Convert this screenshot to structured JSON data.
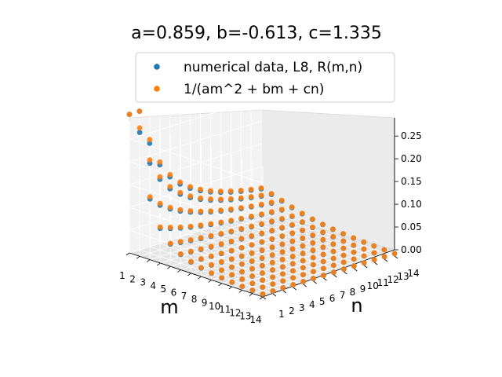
{
  "chart_data": {
    "type": "scatter",
    "title": "a=0.859, b=-0.613, c=1.335",
    "xlabel": "m",
    "ylabel": "n",
    "zlabel": "",
    "params": {
      "a": 0.859,
      "b": -0.613,
      "c": 1.335
    },
    "x_ticks": [
      "1",
      "2",
      "3",
      "4",
      "5",
      "6",
      "7",
      "8",
      "9",
      "10",
      "11",
      "12",
      "13",
      "14"
    ],
    "y_ticks": [
      "1",
      "2",
      "3",
      "4",
      "5",
      "6",
      "7",
      "8",
      "9",
      "10",
      "11",
      "12",
      "13",
      "14"
    ],
    "z_ticks": [
      "0.00",
      "0.05",
      "0.10",
      "0.15",
      "0.20",
      "0.25"
    ],
    "xlim": [
      1,
      14
    ],
    "ylim": [
      1,
      14
    ],
    "zlim": [
      0,
      0.29
    ],
    "grid": true,
    "legend_position": "top-center",
    "series": [
      {
        "name": "numerical data, L8, R(m,n)",
        "color": "#1f77b4",
        "z_scale": 0.965
      },
      {
        "name": "1/(am^2 + bm + cn)",
        "color": "#ff7f0e",
        "z_scale": 1.0
      }
    ]
  }
}
